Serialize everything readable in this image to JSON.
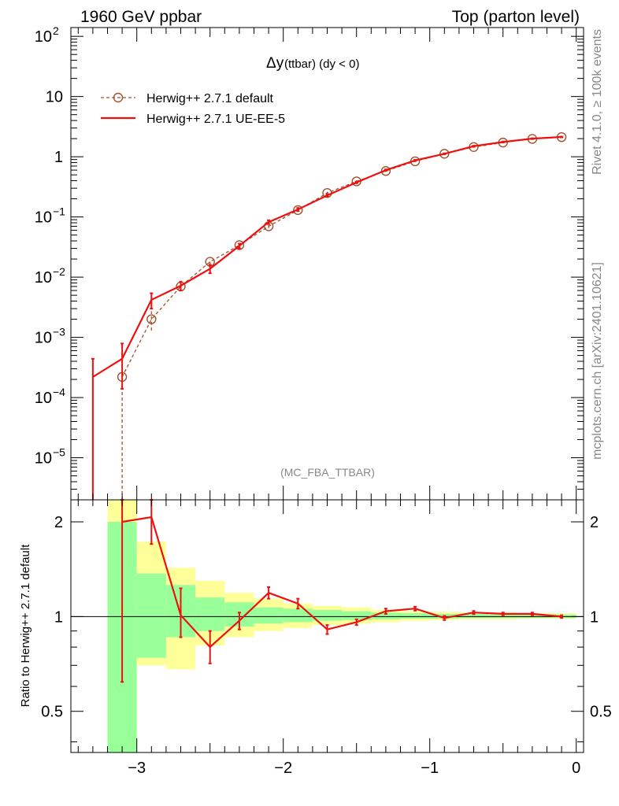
{
  "header": {
    "left": "1960 GeV ppbar",
    "right": "Top (parton level)"
  },
  "side_labels": {
    "rivet": "Rivet 4.1.0, ≥ 100k events",
    "mcplots": "mcplots.cern.ch [arXiv:2401.10621]"
  },
  "chart_data": [
    {
      "type": "line",
      "title_main": "Δy",
      "title_sub": " (ttbar) (dy < 0)",
      "analysis_label": "(MC_FBA_TTBAR)",
      "yscale": "log",
      "xlim": [
        -3.45,
        0.05
      ],
      "ylim": [
        2e-06,
        140
      ],
      "y_ticks": [
        {
          "value": 1e-05,
          "base": "10",
          "exp": "−5"
        },
        {
          "value": 0.0001,
          "base": "10",
          "exp": "−4"
        },
        {
          "value": 0.001,
          "base": "10",
          "exp": "−3"
        },
        {
          "value": 0.01,
          "base": "10",
          "exp": "−2"
        },
        {
          "value": 0.1,
          "base": "10",
          "exp": "−1"
        },
        {
          "value": 1,
          "base": "1",
          "exp": ""
        },
        {
          "value": 10,
          "base": "10",
          "exp": ""
        },
        {
          "value": 100,
          "base": "10",
          "exp": "2"
        }
      ],
      "legend": {
        "placement": "top-left",
        "entries": [
          "Herwig++ 2.7.1 default",
          "Herwig++ 2.7.1 UE-EE-5"
        ]
      },
      "series": [
        {
          "name": "Herwig++ 2.7.1 default",
          "color": "#a0522d",
          "style": "dashed-circles",
          "x": [
            -3.1,
            -2.9,
            -2.7,
            -2.5,
            -2.3,
            -2.1,
            -1.9,
            -1.7,
            -1.5,
            -1.3,
            -1.1,
            -0.9,
            -0.7,
            -0.5,
            -0.3,
            -0.1
          ],
          "y": [
            0.00022,
            0.002,
            0.007,
            0.018,
            0.034,
            0.07,
            0.13,
            0.25,
            0.39,
            0.58,
            0.84,
            1.12,
            1.45,
            1.72,
            1.98,
            2.12
          ],
          "err_low": [
            0.00022,
            0.0007,
            0.001,
            0.002,
            0.003,
            0.005,
            0.008,
            0.012,
            0.015,
            0.02,
            0.025,
            0.03,
            0.035,
            0.04,
            0.04,
            0.04
          ],
          "err_high": [
            0.00022,
            0.0007,
            0.001,
            0.002,
            0.003,
            0.005,
            0.008,
            0.012,
            0.015,
            0.02,
            0.025,
            0.03,
            0.035,
            0.04,
            0.04,
            0.04
          ]
        },
        {
          "name": "Herwig++ 2.7.1 UE-EE-5",
          "color": "#ee1111",
          "style": "solid",
          "x": [
            -3.3,
            -3.1,
            -2.9,
            -2.7,
            -2.5,
            -2.3,
            -2.1,
            -1.9,
            -1.7,
            -1.5,
            -1.3,
            -1.1,
            -0.9,
            -0.7,
            -0.5,
            -0.3,
            -0.1
          ],
          "y": [
            0.00022,
            0.00044,
            0.0042,
            0.0072,
            0.0138,
            0.033,
            0.082,
            0.133,
            0.228,
            0.375,
            0.6,
            0.87,
            1.12,
            1.5,
            1.76,
            2.0,
            2.13
          ],
          "err_low": [
            0.00022,
            0.0003,
            0.0012,
            0.0012,
            0.0022,
            0.003,
            0.006,
            0.008,
            0.01,
            0.012,
            0.015,
            0.018,
            0.02,
            0.025,
            0.03,
            0.03,
            0.03
          ],
          "err_high": [
            0.00022,
            0.00035,
            0.0012,
            0.0012,
            0.0022,
            0.003,
            0.006,
            0.008,
            0.01,
            0.012,
            0.015,
            0.018,
            0.02,
            0.025,
            0.03,
            0.03,
            0.03
          ]
        }
      ]
    },
    {
      "type": "line",
      "ylabel": "Ratio to Herwig++ 2.7.1 default",
      "yscale": "log",
      "xlim": [
        -3.45,
        0.05
      ],
      "ylim": [
        0.37,
        2.35
      ],
      "y_ticks": [
        {
          "value": 0.5,
          "label": "0.5"
        },
        {
          "value": 1,
          "label": "1"
        },
        {
          "value": 2,
          "label": "2"
        }
      ],
      "x_ticks": [
        {
          "value": -3,
          "label": "−3"
        },
        {
          "value": -2,
          "label": "−2"
        },
        {
          "value": -1,
          "label": "−1"
        },
        {
          "value": 0,
          "label": "0"
        }
      ],
      "bands": {
        "bins": [
          [
            -3.2,
            -3.0
          ],
          [
            -3.0,
            -2.8
          ],
          [
            -2.8,
            -2.6
          ],
          [
            -2.6,
            -2.4
          ],
          [
            -2.4,
            -2.2
          ],
          [
            -2.2,
            -2.0
          ],
          [
            -2.0,
            -1.8
          ],
          [
            -1.8,
            -1.6
          ],
          [
            -1.6,
            -1.4
          ],
          [
            -1.4,
            -1.2
          ],
          [
            -1.2,
            -1.0
          ],
          [
            -1.0,
            -0.8
          ],
          [
            -0.8,
            -0.6
          ],
          [
            -0.6,
            -0.4
          ],
          [
            -0.4,
            -0.2
          ],
          [
            -0.2,
            0.0
          ]
        ],
        "yellow": [
          [
            0.3,
            2.5
          ],
          [
            0.7,
            1.73
          ],
          [
            0.68,
            1.43
          ],
          [
            0.81,
            1.3
          ],
          [
            0.86,
            1.19
          ],
          [
            0.9,
            1.14
          ],
          [
            0.92,
            1.1
          ],
          [
            0.94,
            1.08
          ],
          [
            0.95,
            1.07
          ],
          [
            0.96,
            1.05
          ],
          [
            0.97,
            1.04
          ],
          [
            0.975,
            1.035
          ],
          [
            0.98,
            1.03
          ],
          [
            0.98,
            1.03
          ],
          [
            0.985,
            1.025
          ],
          [
            0.985,
            1.025
          ]
        ],
        "green": [
          [
            0.3,
            2.0
          ],
          [
            0.74,
            1.37
          ],
          [
            0.86,
            1.26
          ],
          [
            0.9,
            1.15
          ],
          [
            0.93,
            1.11
          ],
          [
            0.95,
            1.07
          ],
          [
            0.96,
            1.06
          ],
          [
            0.97,
            1.05
          ],
          [
            0.975,
            1.04
          ],
          [
            0.98,
            1.03
          ],
          [
            0.985,
            1.025
          ],
          [
            0.985,
            1.02
          ],
          [
            0.99,
            1.02
          ],
          [
            0.99,
            1.015
          ],
          [
            0.99,
            1.015
          ],
          [
            0.99,
            1.015
          ]
        ],
        "yellow_color": "#ffff99",
        "green_color": "#99ff99"
      },
      "series": [
        {
          "name": "Herwig++ 2.7.1 UE-EE-5 / default",
          "color": "#ee1111",
          "x": [
            -3.1,
            -2.9,
            -2.7,
            -2.5,
            -2.3,
            -2.1,
            -1.9,
            -1.7,
            -1.5,
            -1.3,
            -1.1,
            -0.9,
            -0.7,
            -0.5,
            -0.3,
            -0.1
          ],
          "y": [
            2.0,
            2.07,
            1.01,
            0.8,
            0.97,
            1.19,
            1.1,
            0.91,
            0.96,
            1.04,
            1.06,
            0.99,
            1.03,
            1.02,
            1.02,
            1.0
          ],
          "err_low": [
            1.38,
            0.37,
            0.15,
            0.09,
            0.06,
            0.05,
            0.04,
            0.03,
            0.02,
            0.02,
            0.015,
            0.015,
            0.012,
            0.01,
            0.01,
            0.01
          ],
          "err_high": [
            1.0,
            0.4,
            0.22,
            0.1,
            0.06,
            0.05,
            0.04,
            0.03,
            0.02,
            0.02,
            0.015,
            0.015,
            0.012,
            0.01,
            0.01,
            0.01
          ]
        }
      ]
    }
  ]
}
